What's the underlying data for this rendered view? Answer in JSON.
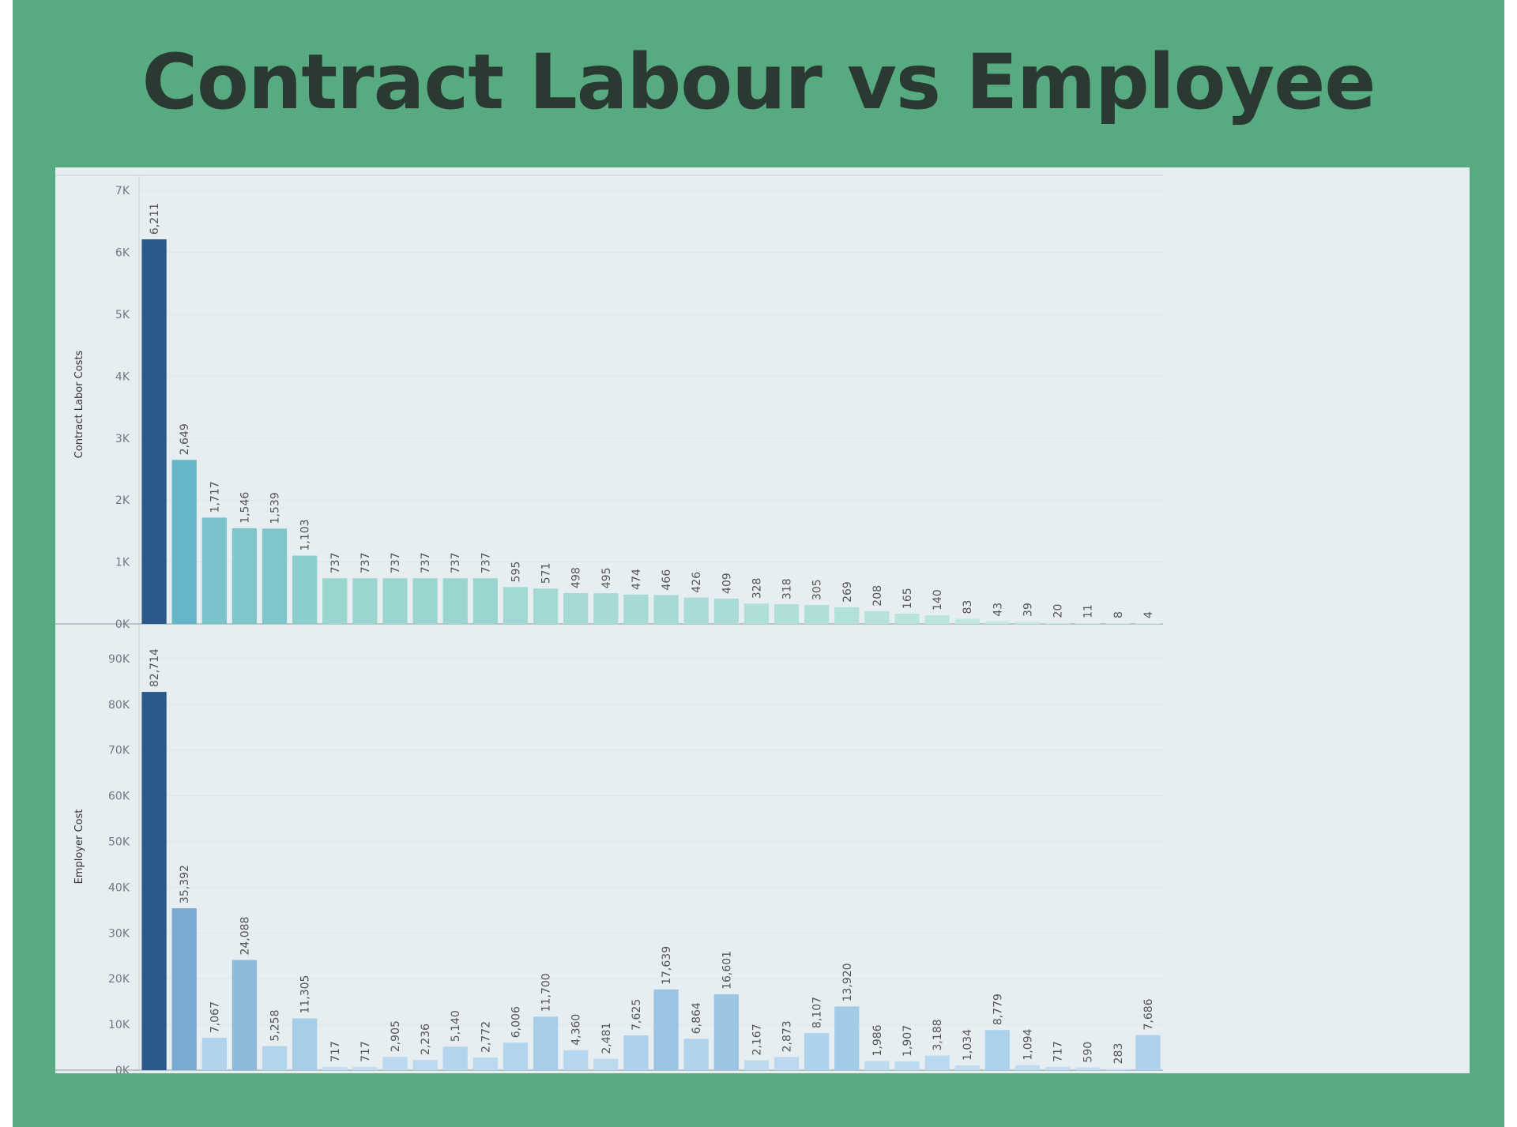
{
  "title": "Contract Labour vs Employee",
  "chart_data": [
    {
      "type": "bar",
      "ylabel": "Contract Labor Costs",
      "ylim": [
        0,
        7000
      ],
      "yticks": [
        0,
        1000,
        2000,
        3000,
        4000,
        5000,
        6000,
        7000
      ],
      "yticklabels": [
        "0K",
        "1K",
        "2K",
        "3K",
        "4K",
        "5K",
        "6K",
        "7K"
      ],
      "values": [
        6211,
        2649,
        1717,
        1546,
        1539,
        1103,
        737,
        737,
        737,
        737,
        737,
        737,
        595,
        571,
        498,
        495,
        474,
        466,
        426,
        409,
        328,
        318,
        305,
        269,
        208,
        165,
        140,
        83,
        43,
        39,
        20,
        11,
        8,
        4
      ],
      "labels": [
        "6,211",
        "2,649",
        "1,717",
        "1,546",
        "1,539",
        "1,103",
        "737",
        "737",
        "737",
        "737",
        "737",
        "737",
        "595",
        "571",
        "498",
        "495",
        "474",
        "466",
        "426",
        "409",
        "328",
        "318",
        "305",
        "269",
        "208",
        "165",
        "140",
        "83",
        "43",
        "39",
        "20",
        "11",
        "8",
        "4"
      ],
      "color_scale": [
        "#cfeee5",
        "#8fd0cc",
        "#5aaec8",
        "#2a5888"
      ]
    },
    {
      "type": "bar",
      "ylabel": "Employer Cost",
      "ylim": [
        0,
        95000
      ],
      "yticks": [
        0,
        10000,
        20000,
        30000,
        40000,
        50000,
        60000,
        70000,
        80000,
        90000
      ],
      "yticklabels": [
        "0K",
        "10K",
        "20K",
        "30K",
        "40K",
        "50K",
        "60K",
        "70K",
        "80K",
        "90K"
      ],
      "values": [
        82714,
        35392,
        7067,
        24088,
        5258,
        11305,
        717,
        717,
        2905,
        2236,
        5140,
        2772,
        6006,
        11700,
        4360,
        2481,
        7625,
        17639,
        6864,
        16601,
        2167,
        2873,
        8107,
        13920,
        1986,
        1907,
        3188,
        1034,
        8779,
        1094,
        717,
        590,
        283,
        7686
      ],
      "labels": [
        "82,714",
        "35,392",
        "7,067",
        "24,088",
        "5,258",
        "11,305",
        "717",
        "717",
        "2,905",
        "2,236",
        "5,140",
        "2,772",
        "6,006",
        "11,700",
        "4,360",
        "2,481",
        "7,625",
        "17,639",
        "6,864",
        "16,601",
        "2,167",
        "2,873",
        "8,107",
        "13,920",
        "1,986",
        "1,907",
        "3,188",
        "1,034",
        "8,779",
        "1,094",
        "717",
        "590",
        "283",
        "7,686"
      ],
      "color_scale": [
        "#c8e2f2",
        "#a4cce8",
        "#6e9fcb",
        "#2a5888"
      ]
    }
  ]
}
